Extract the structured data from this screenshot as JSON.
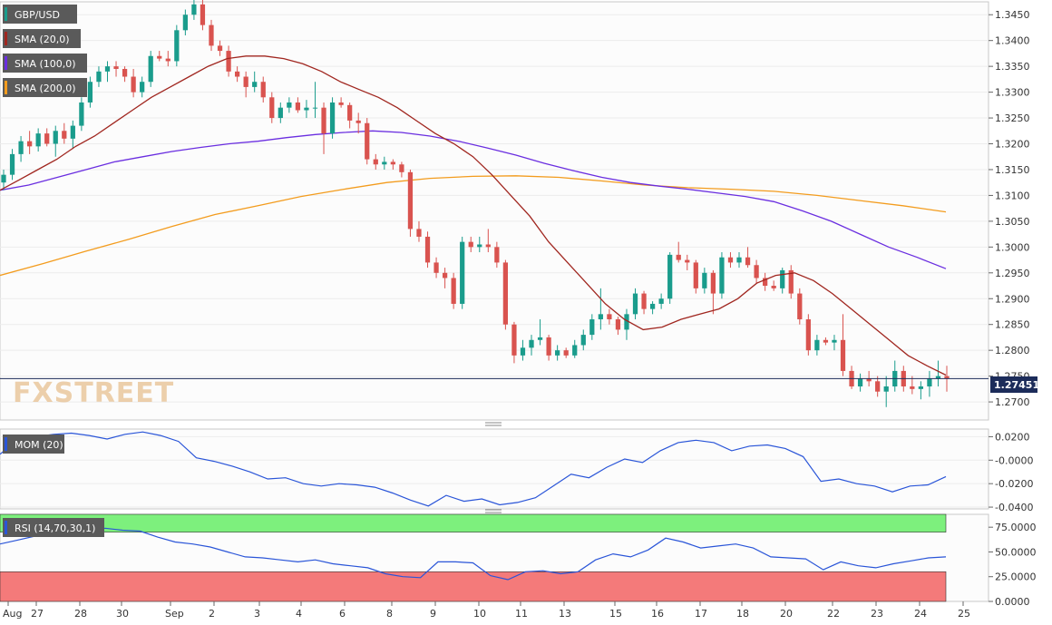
{
  "watermark": "FXSTREET",
  "colors": {
    "up": "#1a9c8c",
    "down": "#d9534f",
    "sma20": "#a0261f",
    "sma100": "#6a2ee0",
    "sma200": "#f39c1e",
    "mom": "#2a55d8",
    "rsi": "#2a55d8",
    "rsi_overbought_zone": "#7df07d",
    "rsi_oversold_zone": "#f47a7a",
    "last_price_line": "#1c2c5a",
    "legend_bg": "#5a5a5a"
  },
  "chart_data": [
    {
      "type": "candlestick",
      "title": "",
      "legend": [
        "GBP/USD",
        "SMA (20,0)",
        "SMA (100,0)",
        "SMA (200,0)"
      ],
      "legend_placement": "top-left",
      "ylim": [
        1.2665,
        1.3475
      ],
      "yticks": [
        "1.3450",
        "1.3400",
        "1.3350",
        "1.3300",
        "1.3250",
        "1.3200",
        "1.3150",
        "1.3100",
        "1.3050",
        "1.3000",
        "1.2950",
        "1.2900",
        "1.2850",
        "1.2800",
        "1.2750",
        "1.2700"
      ],
      "last_price": "1.27451",
      "candles": [
        [
          1.3125,
          1.315,
          1.311,
          1.314
        ],
        [
          1.314,
          1.319,
          1.313,
          1.318
        ],
        [
          1.318,
          1.3215,
          1.3165,
          1.3205
        ],
        [
          1.3205,
          1.3225,
          1.318,
          1.3195
        ],
        [
          1.3195,
          1.323,
          1.3185,
          1.322
        ],
        [
          1.322,
          1.323,
          1.3195,
          1.32
        ],
        [
          1.32,
          1.3235,
          1.3175,
          1.3225
        ],
        [
          1.3225,
          1.324,
          1.32,
          1.321
        ],
        [
          1.321,
          1.3245,
          1.319,
          1.3235
        ],
        [
          1.3235,
          1.329,
          1.3225,
          1.328
        ],
        [
          1.328,
          1.333,
          1.327,
          1.332
        ],
        [
          1.332,
          1.335,
          1.331,
          1.334
        ],
        [
          1.334,
          1.336,
          1.332,
          1.335
        ],
        [
          1.335,
          1.336,
          1.333,
          1.3345
        ],
        [
          1.3345,
          1.335,
          1.332,
          1.333
        ],
        [
          1.333,
          1.3345,
          1.329,
          1.33
        ],
        [
          1.33,
          1.333,
          1.329,
          1.332
        ],
        [
          1.332,
          1.338,
          1.331,
          1.337
        ],
        [
          1.337,
          1.338,
          1.336,
          1.3365
        ],
        [
          1.3365,
          1.338,
          1.335,
          1.336
        ],
        [
          1.336,
          1.343,
          1.335,
          1.342
        ],
        [
          1.342,
          1.346,
          1.341,
          1.345
        ],
        [
          1.345,
          1.348,
          1.344,
          1.347
        ],
        [
          1.347,
          1.348,
          1.342,
          1.343
        ],
        [
          1.343,
          1.344,
          1.338,
          1.339
        ],
        [
          1.339,
          1.34,
          1.337,
          1.338
        ],
        [
          1.338,
          1.339,
          1.333,
          1.334
        ],
        [
          1.334,
          1.335,
          1.332,
          1.333
        ],
        [
          1.333,
          1.334,
          1.329,
          1.331
        ],
        [
          1.331,
          1.334,
          1.33,
          1.332
        ],
        [
          1.332,
          1.333,
          1.328,
          1.329
        ],
        [
          1.329,
          1.33,
          1.324,
          1.325
        ],
        [
          1.325,
          1.328,
          1.324,
          1.327
        ],
        [
          1.327,
          1.329,
          1.326,
          1.328
        ],
        [
          1.328,
          1.329,
          1.326,
          1.3265
        ],
        [
          1.3265,
          1.3285,
          1.325,
          1.327
        ],
        [
          1.327,
          1.332,
          1.325,
          1.327
        ],
        [
          1.327,
          1.328,
          1.318,
          1.322
        ],
        [
          1.322,
          1.329,
          1.321,
          1.328
        ],
        [
          1.328,
          1.329,
          1.327,
          1.3275
        ],
        [
          1.3275,
          1.328,
          1.323,
          1.3245
        ],
        [
          1.3245,
          1.326,
          1.322,
          1.324
        ],
        [
          1.324,
          1.325,
          1.316,
          1.317
        ],
        [
          1.317,
          1.318,
          1.315,
          1.316
        ],
        [
          1.316,
          1.3175,
          1.315,
          1.3165
        ],
        [
          1.3165,
          1.317,
          1.315,
          1.316
        ],
        [
          1.316,
          1.3165,
          1.3135,
          1.3145
        ],
        [
          1.3145,
          1.315,
          1.302,
          1.3035
        ],
        [
          1.3035,
          1.305,
          1.301,
          1.302
        ],
        [
          1.302,
          1.303,
          1.296,
          1.297
        ],
        [
          1.297,
          1.298,
          1.294,
          1.295
        ],
        [
          1.295,
          1.296,
          1.292,
          1.294
        ],
        [
          1.294,
          1.295,
          1.288,
          1.289
        ],
        [
          1.289,
          1.302,
          1.288,
          1.301
        ],
        [
          1.301,
          1.302,
          1.299,
          1.3
        ],
        [
          1.3,
          1.302,
          1.299,
          1.3005
        ],
        [
          1.3005,
          1.3035,
          1.299,
          1.3
        ],
        [
          1.3,
          1.301,
          1.296,
          1.297
        ],
        [
          1.297,
          1.2975,
          1.284,
          1.285
        ],
        [
          1.285,
          1.2855,
          1.2775,
          1.279
        ],
        [
          1.279,
          1.282,
          1.278,
          1.2805
        ],
        [
          1.2805,
          1.283,
          1.279,
          1.282
        ],
        [
          1.282,
          1.286,
          1.281,
          1.2825
        ],
        [
          1.2825,
          1.283,
          1.278,
          1.279
        ],
        [
          1.279,
          1.281,
          1.278,
          1.28
        ],
        [
          1.28,
          1.2805,
          1.2785,
          1.279
        ],
        [
          1.279,
          1.282,
          1.2785,
          1.281
        ],
        [
          1.281,
          1.284,
          1.28,
          1.283
        ],
        [
          1.283,
          1.287,
          1.282,
          1.286
        ],
        [
          1.286,
          1.292,
          1.284,
          1.287
        ],
        [
          1.287,
          1.288,
          1.285,
          1.286
        ],
        [
          1.286,
          1.2865,
          1.283,
          1.284
        ],
        [
          1.284,
          1.288,
          1.282,
          1.287
        ],
        [
          1.287,
          1.292,
          1.286,
          1.291
        ],
        [
          1.291,
          1.2915,
          1.287,
          1.288
        ],
        [
          1.288,
          1.2895,
          1.287,
          1.289
        ],
        [
          1.289,
          1.291,
          1.288,
          1.29
        ],
        [
          1.29,
          1.299,
          1.289,
          1.2985
        ],
        [
          1.2985,
          1.301,
          1.297,
          1.2975
        ],
        [
          1.2975,
          1.2985,
          1.2955,
          1.297
        ],
        [
          1.297,
          1.2975,
          1.291,
          1.292
        ],
        [
          1.292,
          1.296,
          1.291,
          1.295
        ],
        [
          1.295,
          1.2955,
          1.287,
          1.291
        ],
        [
          1.291,
          1.299,
          1.29,
          1.298
        ],
        [
          1.298,
          1.299,
          1.296,
          1.297
        ],
        [
          1.297,
          1.299,
          1.296,
          1.298
        ],
        [
          1.298,
          1.3,
          1.296,
          1.2965
        ],
        [
          1.2965,
          1.2975,
          1.293,
          1.294
        ],
        [
          1.294,
          1.295,
          1.2915,
          1.2925
        ],
        [
          1.2925,
          1.2935,
          1.2915,
          1.292
        ],
        [
          1.292,
          1.296,
          1.291,
          1.2955
        ],
        [
          1.2955,
          1.2965,
          1.29,
          1.291
        ],
        [
          1.291,
          1.292,
          1.285,
          1.286
        ],
        [
          1.286,
          1.287,
          1.279,
          1.28
        ],
        [
          1.28,
          1.283,
          1.279,
          1.282
        ],
        [
          1.282,
          1.2825,
          1.281,
          1.2815
        ],
        [
          1.2815,
          1.283,
          1.28,
          1.282
        ],
        [
          1.282,
          1.287,
          1.275,
          1.276
        ],
        [
          1.276,
          1.277,
          1.2725,
          1.273
        ],
        [
          1.273,
          1.2755,
          1.272,
          1.2745
        ],
        [
          1.2745,
          1.276,
          1.273,
          1.274
        ],
        [
          1.274,
          1.275,
          1.271,
          1.272
        ],
        [
          1.272,
          1.275,
          1.269,
          1.273
        ],
        [
          1.273,
          1.278,
          1.272,
          1.276
        ],
        [
          1.276,
          1.277,
          1.272,
          1.273
        ],
        [
          1.273,
          1.275,
          1.2715,
          1.2725
        ],
        [
          1.2725,
          1.274,
          1.2705,
          1.273
        ],
        [
          1.273,
          1.276,
          1.271,
          1.2745
        ],
        [
          1.2745,
          1.278,
          1.273,
          1.275
        ],
        [
          1.275,
          1.277,
          1.272,
          1.2745
        ]
      ],
      "sma20": [
        1.311,
        1.313,
        1.315,
        1.317,
        1.3195,
        1.3215,
        1.324,
        1.3265,
        1.329,
        1.331,
        1.333,
        1.335,
        1.3365,
        1.337,
        1.337,
        1.3365,
        1.3355,
        1.334,
        1.332,
        1.3305,
        1.329,
        1.327,
        1.3245,
        1.322,
        1.32,
        1.3175,
        1.314,
        1.31,
        1.306,
        1.301,
        1.297,
        1.293,
        1.289,
        1.286,
        1.284,
        1.2845,
        1.286,
        1.287,
        1.288,
        1.29,
        1.293,
        1.2945,
        1.295,
        1.2935,
        1.291,
        1.288,
        1.285,
        1.282,
        1.279,
        1.277,
        1.2752
      ],
      "sma100": [
        1.311,
        1.312,
        1.3135,
        1.315,
        1.3165,
        1.3175,
        1.3185,
        1.3193,
        1.32,
        1.3205,
        1.3212,
        1.3218,
        1.3222,
        1.3225,
        1.3222,
        1.3215,
        1.3205,
        1.3192,
        1.3178,
        1.3162,
        1.3148,
        1.3135,
        1.3125,
        1.3118,
        1.3112,
        1.3105,
        1.3098,
        1.3088,
        1.307,
        1.305,
        1.3025,
        1.3,
        1.298,
        1.2958
      ],
      "sma200": [
        1.2945,
        1.2968,
        1.2992,
        1.3015,
        1.304,
        1.3063,
        1.308,
        1.3098,
        1.3112,
        1.3125,
        1.3133,
        1.3137,
        1.3138,
        1.3135,
        1.3128,
        1.312,
        1.3115,
        1.3112,
        1.3108,
        1.31,
        1.309,
        1.308,
        1.3068
      ]
    },
    {
      "type": "line",
      "legend": [
        "MOM (20)"
      ],
      "legend_placement": "top-left",
      "ylim": [
        -0.0415,
        0.0265
      ],
      "yticks": [
        "0.0200",
        "-0.0000",
        "-0.0200",
        "-0.0400"
      ],
      "values": [
        0.005,
        0.018,
        0.02,
        0.022,
        0.023,
        0.021,
        0.018,
        0.022,
        0.024,
        0.021,
        0.016,
        0.002,
        -0.001,
        -0.005,
        -0.01,
        -0.016,
        -0.015,
        -0.02,
        -0.022,
        -0.02,
        -0.021,
        -0.023,
        -0.028,
        -0.034,
        -0.039,
        -0.03,
        -0.035,
        -0.033,
        -0.038,
        -0.036,
        -0.032,
        -0.022,
        -0.012,
        -0.015,
        -0.006,
        0.001,
        -0.002,
        0.008,
        0.015,
        0.017,
        0.015,
        0.008,
        0.012,
        0.013,
        0.01,
        0.003,
        -0.018,
        -0.016,
        -0.02,
        -0.022,
        -0.027,
        -0.022,
        -0.021,
        -0.014
      ]
    },
    {
      "type": "line",
      "legend": [
        "RSI (14,70,30,1)"
      ],
      "legend_placement": "top-left",
      "ylim": [
        0,
        88
      ],
      "yticks": [
        "75.0000",
        "50.0000",
        "25.0000",
        "0.0000"
      ],
      "overbought": 70,
      "oversold": 30,
      "values": [
        58,
        62,
        66,
        68,
        72,
        70,
        74,
        72,
        71,
        65,
        60,
        58,
        55,
        50,
        45,
        44,
        42,
        40,
        42,
        38,
        36,
        34,
        28,
        25,
        24,
        40,
        40,
        39,
        26,
        22,
        30,
        31,
        28,
        30,
        42,
        48,
        45,
        52,
        64,
        60,
        54,
        56,
        58,
        54,
        45,
        44,
        43,
        32,
        40,
        36,
        34,
        38,
        41,
        44,
        45
      ]
    }
  ],
  "x_axis": {
    "labels": [
      "Aug",
      "27",
      "28",
      "30",
      "Sep",
      "2",
      "3",
      "4",
      "6",
      "8",
      "9",
      "10",
      "11",
      "13",
      "15",
      "16",
      "17",
      "18",
      "20",
      "22",
      "23",
      "24",
      "25"
    ]
  }
}
